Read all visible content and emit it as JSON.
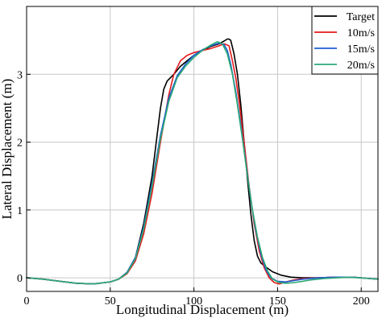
{
  "chart_data": {
    "type": "line",
    "title": "",
    "xlabel": "Longitudinal Displacement (m)",
    "ylabel": "Lateral Displacement (m)",
    "xlim": [
      0,
      210
    ],
    "ylim": [
      -0.2,
      4.0
    ],
    "xticks": [
      0,
      50,
      100,
      150,
      200
    ],
    "yticks": [
      0,
      1,
      2,
      3
    ],
    "grid": true,
    "legend_position": "top-right",
    "series": [
      {
        "name": "Target",
        "color": "#000000",
        "x": [
          0,
          10,
          20,
          30,
          40,
          50,
          55,
          60,
          65,
          70,
          75,
          78,
          80,
          82,
          84,
          88,
          92,
          96,
          100,
          105,
          110,
          115,
          118,
          120,
          121,
          122,
          124,
          126,
          128,
          130,
          132,
          134,
          136,
          138,
          140,
          143,
          147,
          152,
          158,
          165,
          175,
          185,
          195,
          205,
          210
        ],
        "y": [
          0,
          -0.02,
          -0.05,
          -0.08,
          -0.09,
          -0.06,
          -0.02,
          0.08,
          0.3,
          0.8,
          1.5,
          2.1,
          2.5,
          2.78,
          2.9,
          3.0,
          3.12,
          3.2,
          3.28,
          3.35,
          3.41,
          3.45,
          3.49,
          3.52,
          3.52,
          3.5,
          3.3,
          3.0,
          2.55,
          2.0,
          1.45,
          0.95,
          0.55,
          0.32,
          0.22,
          0.16,
          0.09,
          0.04,
          0.01,
          0.0,
          0.0,
          0.01,
          0.01,
          -0.01,
          -0.02
        ]
      },
      {
        "name": "10m/s",
        "color": "#e31a1c",
        "x": [
          0,
          10,
          20,
          30,
          40,
          50,
          55,
          60,
          65,
          70,
          75,
          80,
          85,
          88,
          92,
          96,
          100,
          105,
          110,
          115,
          118,
          121,
          123,
          125,
          127,
          130,
          133,
          136,
          139,
          142,
          145,
          148,
          151,
          155,
          160,
          165,
          175,
          185,
          195,
          205,
          210
        ],
        "y": [
          0,
          -0.02,
          -0.05,
          -0.08,
          -0.09,
          -0.06,
          -0.02,
          0.06,
          0.25,
          0.65,
          1.25,
          2.0,
          2.7,
          3.0,
          3.2,
          3.28,
          3.32,
          3.35,
          3.38,
          3.42,
          3.45,
          3.42,
          3.2,
          2.95,
          2.6,
          2.0,
          1.35,
          0.8,
          0.4,
          0.15,
          0.0,
          -0.07,
          -0.09,
          -0.06,
          -0.03,
          -0.01,
          0.0,
          0.01,
          0.01,
          -0.01,
          -0.02
        ]
      },
      {
        "name": "15m/s",
        "color": "#1f5fd1",
        "x": [
          0,
          10,
          20,
          30,
          40,
          50,
          55,
          60,
          65,
          70,
          75,
          80,
          85,
          90,
          95,
          100,
          105,
          110,
          115,
          118,
          120,
          122,
          125,
          128,
          131,
          134,
          137,
          140,
          143,
          146,
          150,
          155,
          160,
          165,
          175,
          185,
          195,
          205,
          210
        ],
        "y": [
          0,
          -0.02,
          -0.05,
          -0.08,
          -0.09,
          -0.06,
          -0.02,
          0.08,
          0.3,
          0.75,
          1.4,
          2.1,
          2.65,
          2.98,
          3.15,
          3.28,
          3.36,
          3.42,
          3.46,
          3.44,
          3.35,
          3.15,
          2.75,
          2.25,
          1.7,
          1.15,
          0.7,
          0.35,
          0.12,
          0.0,
          -0.05,
          -0.06,
          -0.04,
          -0.02,
          0.0,
          0.01,
          0.01,
          -0.01,
          -0.02
        ]
      },
      {
        "name": "20m/s",
        "color": "#2ca877",
        "x": [
          0,
          10,
          20,
          30,
          40,
          50,
          55,
          60,
          65,
          70,
          75,
          80,
          85,
          90,
          95,
          100,
          105,
          110,
          114,
          117,
          120,
          123,
          126,
          129,
          132,
          135,
          138,
          141,
          144,
          147,
          151,
          155,
          160,
          165,
          170,
          178,
          186,
          192,
          198,
          205,
          210
        ],
        "y": [
          0,
          -0.02,
          -0.05,
          -0.08,
          -0.09,
          -0.06,
          -0.02,
          0.07,
          0.28,
          0.72,
          1.35,
          2.05,
          2.6,
          2.95,
          3.12,
          3.25,
          3.35,
          3.43,
          3.48,
          3.45,
          3.3,
          3.0,
          2.55,
          2.05,
          1.5,
          1.0,
          0.6,
          0.3,
          0.1,
          -0.02,
          -0.07,
          -0.08,
          -0.07,
          -0.05,
          -0.03,
          -0.01,
          0.0,
          0.01,
          0.0,
          -0.01,
          -0.02
        ]
      }
    ]
  }
}
